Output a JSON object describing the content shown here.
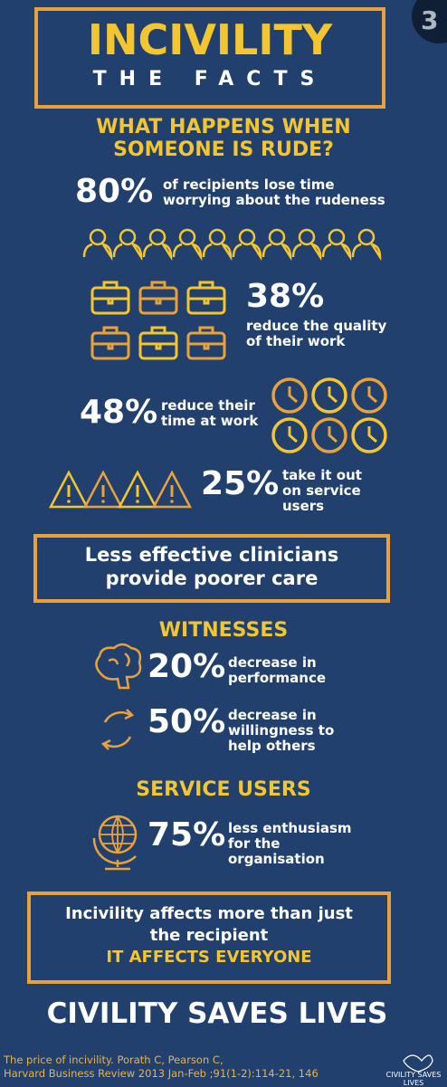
{
  "page_tab": "3",
  "header": {
    "title": "INCIVILITY",
    "subtitle": "THE FACTS"
  },
  "rude": {
    "heading": [
      "WHAT HAPPENS WHEN",
      "SOMEONE IS RUDE?"
    ],
    "stats": [
      {
        "percent": "80%",
        "text": [
          "of recipients lose time",
          "worrying about the rudeness"
        ]
      },
      {
        "percent": "38%",
        "text": [
          "reduce the quality",
          "of their work"
        ]
      },
      {
        "percent": "48%",
        "text": [
          "reduce their",
          "time at work"
        ]
      },
      {
        "percent": "25%",
        "text": [
          "take it out",
          "on service",
          "users"
        ]
      }
    ]
  },
  "callout": [
    "Less effective clinicians",
    "provide poorer care"
  ],
  "witnesses": {
    "heading": "WITNESSES",
    "stats": [
      {
        "percent": "20%",
        "text": [
          "decrease in",
          "performance"
        ]
      },
      {
        "percent": "50%",
        "text": [
          "decrease in",
          "willingness to",
          "help others"
        ]
      }
    ]
  },
  "service_users": {
    "heading": "SERVICE USERS",
    "stats": [
      {
        "percent": "75%",
        "text": [
          "less enthusiasm",
          "for the",
          "organisation"
        ]
      }
    ]
  },
  "conclusion": {
    "lines": [
      "Incivility affects more than just",
      "the recipient"
    ],
    "emphasis": "IT AFFECTS EVERYONE"
  },
  "footer": {
    "slogan": "CIVILITY SAVES LIVES",
    "citation": [
      "The price of incivility. Porath C, Pearson C,",
      "Harvard Business Review 2013 Jan-Feb ;91(1-2):114-21, 146"
    ],
    "logo": [
      "CIVILITY SAVES",
      "LIVES"
    ]
  }
}
